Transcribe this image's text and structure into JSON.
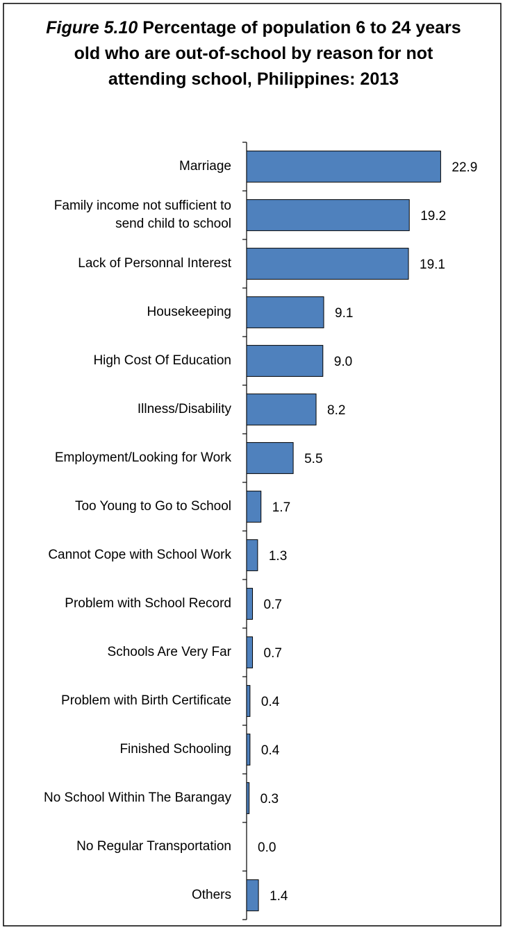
{
  "chart_data": {
    "type": "barh",
    "figure_label": "Figure 5.10",
    "title": "Percentage of population 6 to 24 years old who are out-of-school by reason for not attending school, Philippines: 2013",
    "categories": [
      "Marriage",
      "Family income not sufficient to send child to school",
      "Lack of Personnal Interest",
      "Housekeeping",
      "High Cost Of Education",
      "Illness/Disability",
      "Employment/Looking for Work",
      "Too Young to Go to School",
      "Cannot Cope with School Work",
      "Problem with School Record",
      "Schools Are Very Far",
      "Problem with Birth Certificate",
      "Finished Schooling",
      "No School Within The Barangay",
      "No Regular Transportation",
      "Others"
    ],
    "values": [
      22.9,
      19.2,
      19.1,
      9.1,
      9.0,
      8.2,
      5.5,
      1.7,
      1.3,
      0.7,
      0.7,
      0.4,
      0.4,
      0.3,
      0.0,
      1.4
    ],
    "value_labels": [
      "22.9",
      "19.2",
      "19.1",
      "9.1",
      "9.0",
      "8.2",
      "5.5",
      "1.7",
      "1.3",
      "0.7",
      "0.7",
      "0.4",
      "0.4",
      "0.3",
      "0.0",
      "1.4"
    ],
    "color": "#4f81bd",
    "xlim": [
      0,
      25
    ]
  }
}
